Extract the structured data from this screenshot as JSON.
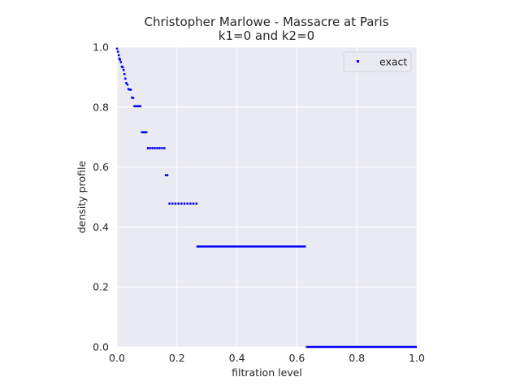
{
  "chart_data": {
    "type": "scatter",
    "title_lines": [
      "Christopher Marlowe - Massacre at Paris",
      "k1=0 and k2=0"
    ],
    "xlabel": "filtration level",
    "ylabel": "density profile",
    "xlim": [
      0.0,
      1.0
    ],
    "ylim": [
      0.0,
      1.0
    ],
    "xticks": [
      "0.0",
      "0.2",
      "0.4",
      "0.6",
      "0.8",
      "1.0"
    ],
    "yticks": [
      "0.0",
      "0.2",
      "0.4",
      "0.6",
      "0.8",
      "1.0"
    ],
    "grid": true,
    "legend_position": "top-right",
    "series": [
      {
        "name": "exact",
        "color": "#0000ff",
        "marker": "square",
        "points": [
          [
            0.0,
            0.995
          ],
          [
            0.003,
            0.985
          ],
          [
            0.006,
            0.973
          ],
          [
            0.008,
            0.962
          ],
          [
            0.01,
            0.958
          ],
          [
            0.013,
            0.95
          ],
          [
            0.016,
            0.935
          ],
          [
            0.019,
            0.933
          ],
          [
            0.022,
            0.924
          ],
          [
            0.025,
            0.91
          ],
          [
            0.028,
            0.895
          ],
          [
            0.031,
            0.88
          ],
          [
            0.035,
            0.875
          ],
          [
            0.038,
            0.86
          ],
          [
            0.042,
            0.858
          ],
          [
            0.046,
            0.858
          ],
          [
            0.05,
            0.832
          ],
          [
            0.054,
            0.83
          ],
          [
            0.058,
            0.803
          ],
          [
            0.063,
            0.803
          ],
          [
            0.068,
            0.803
          ],
          [
            0.073,
            0.803
          ],
          [
            0.078,
            0.803
          ],
          [
            0.083,
            0.716
          ],
          [
            0.088,
            0.716
          ],
          [
            0.093,
            0.716
          ],
          [
            0.098,
            0.716
          ],
          [
            0.103,
            0.663
          ],
          [
            0.11,
            0.663
          ],
          [
            0.118,
            0.663
          ],
          [
            0.126,
            0.663
          ],
          [
            0.134,
            0.663
          ],
          [
            0.142,
            0.663
          ],
          [
            0.15,
            0.663
          ],
          [
            0.158,
            0.663
          ],
          [
            0.163,
            0.573
          ],
          [
            0.168,
            0.573
          ],
          [
            0.175,
            0.478
          ],
          [
            0.185,
            0.478
          ],
          [
            0.195,
            0.478
          ],
          [
            0.205,
            0.478
          ],
          [
            0.215,
            0.478
          ],
          [
            0.225,
            0.478
          ],
          [
            0.235,
            0.478
          ],
          [
            0.245,
            0.478
          ],
          [
            0.255,
            0.478
          ],
          [
            0.265,
            0.478
          ]
        ],
        "ranges": [
          {
            "x_start": 0.265,
            "x_end": 0.63,
            "y": 0.335
          },
          {
            "x_start": 0.63,
            "x_end": 1.0,
            "y": 0.0
          }
        ]
      }
    ]
  }
}
